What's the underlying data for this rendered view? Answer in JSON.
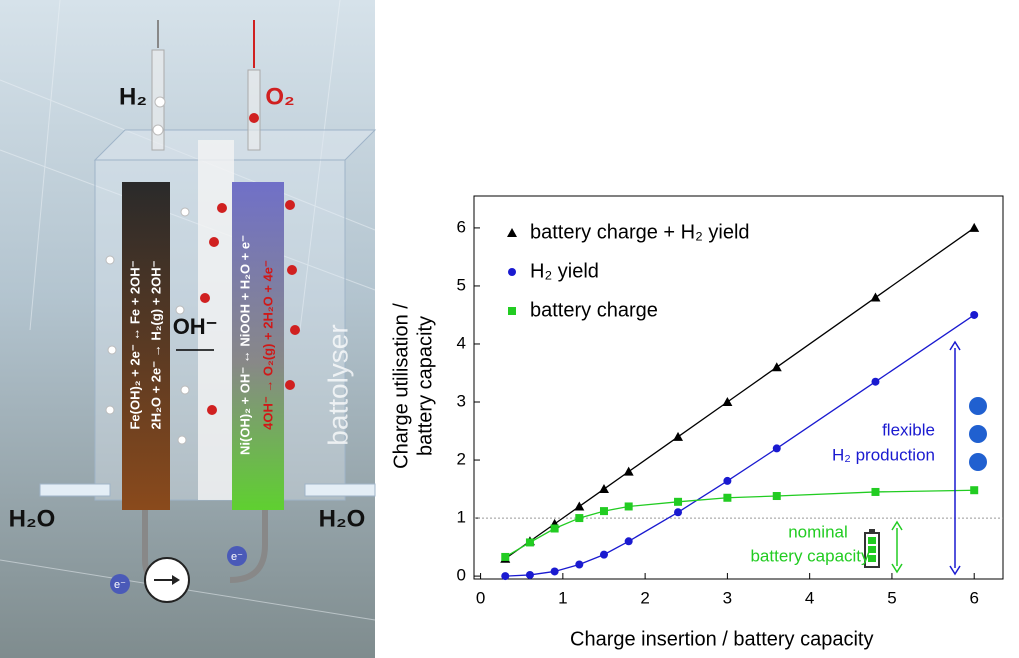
{
  "illustration": {
    "h2_out": "H₂",
    "o2_out": "O₂",
    "hydroxide": "OH⁻",
    "device": "battolyser",
    "water_left": "H₂O",
    "water_right": "H₂O",
    "electron_left": "e⁻",
    "electron_right": "e⁻",
    "anode_battery": "Fe(OH)₂ + 2e⁻ ↔ Fe + 2OH⁻",
    "anode_gas": "2H₂O + 2e⁻ → H₂(g) + 2OH⁻",
    "cathode_battery": "Ni(OH)₂ + OH⁻ ↔ NiOOH + H₂O + e⁻",
    "cathode_gas": "4OH⁻ → O₂(g) + 2H₂O + 4e⁻"
  },
  "chart_data": {
    "type": "line",
    "x_label": "Charge insertion / battery capacity",
    "y_label": [
      "Charge utilisation /",
      "battery capacity"
    ],
    "x": [
      0.3,
      0.6,
      0.9,
      1.2,
      1.5,
      1.8,
      2.4,
      3.0,
      3.6,
      4.8,
      6.0
    ],
    "series": [
      {
        "name": "battery charge + H₂ yield",
        "color": "#000000",
        "marker": "triangle",
        "values": [
          0.3,
          0.6,
          0.9,
          1.2,
          1.5,
          1.8,
          2.4,
          3.0,
          3.6,
          4.8,
          6.0
        ]
      },
      {
        "name": "H₂ yield",
        "color": "#1a1ad0",
        "marker": "circle",
        "values": [
          0.0,
          0.02,
          0.08,
          0.2,
          0.37,
          0.6,
          1.1,
          1.64,
          2.2,
          3.35,
          4.5
        ]
      },
      {
        "name": "battery charge",
        "color": "#22cc22",
        "marker": "square",
        "values": [
          0.33,
          0.58,
          0.82,
          1.0,
          1.12,
          1.2,
          1.28,
          1.35,
          1.38,
          1.45,
          1.48
        ]
      }
    ],
    "xlim": [
      -0.08,
      6.35
    ],
    "ylim": [
      -0.05,
      6.55
    ],
    "xticks": [
      0,
      1,
      2,
      3,
      4,
      5,
      6
    ],
    "yticks": [
      0,
      1,
      2,
      3,
      4,
      5,
      6
    ],
    "reference_line": 1,
    "annotations": {
      "flexible": [
        "flexible",
        "H₂ production"
      ],
      "nominal": [
        "nominal",
        "battery capacity"
      ]
    }
  }
}
